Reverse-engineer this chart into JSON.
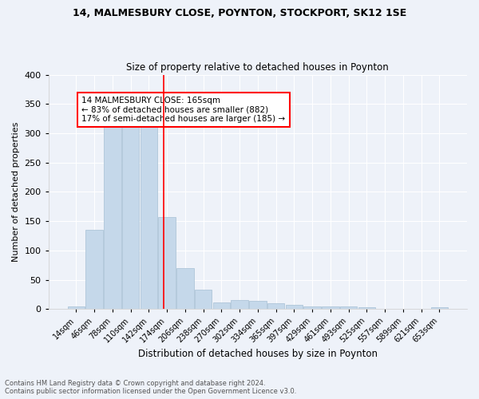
{
  "title1": "14, MALMESBURY CLOSE, POYNTON, STOCKPORT, SK12 1SE",
  "title2": "Size of property relative to detached houses in Poynton",
  "xlabel": "Distribution of detached houses by size in Poynton",
  "ylabel": "Number of detached properties",
  "bar_labels": [
    "14sqm",
    "46sqm",
    "78sqm",
    "110sqm",
    "142sqm",
    "174sqm",
    "206sqm",
    "238sqm",
    "270sqm",
    "302sqm",
    "334sqm",
    "365sqm",
    "397sqm",
    "429sqm",
    "461sqm",
    "493sqm",
    "525sqm",
    "557sqm",
    "589sqm",
    "621sqm",
    "653sqm"
  ],
  "bar_values": [
    4,
    136,
    311,
    313,
    318,
    157,
    70,
    33,
    12,
    15,
    14,
    10,
    7,
    4,
    4,
    4,
    3,
    0,
    0,
    0,
    3
  ],
  "bar_color": "#c5d8ea",
  "bar_edgecolor": "#aec6d8",
  "red_line_color": "red",
  "red_line_x": 4.83,
  "annotation_text": "14 MALMESBURY CLOSE: 165sqm\n← 83% of detached houses are smaller (882)\n17% of semi-detached houses are larger (185) →",
  "annotation_box_color": "white",
  "annotation_border_color": "red",
  "ylim": [
    0,
    400
  ],
  "yticks": [
    0,
    50,
    100,
    150,
    200,
    250,
    300,
    350,
    400
  ],
  "footer": "Contains HM Land Registry data © Crown copyright and database right 2024.\nContains public sector information licensed under the Open Government Licence v3.0.",
  "background_color": "#eef2f9",
  "grid_color": "white"
}
